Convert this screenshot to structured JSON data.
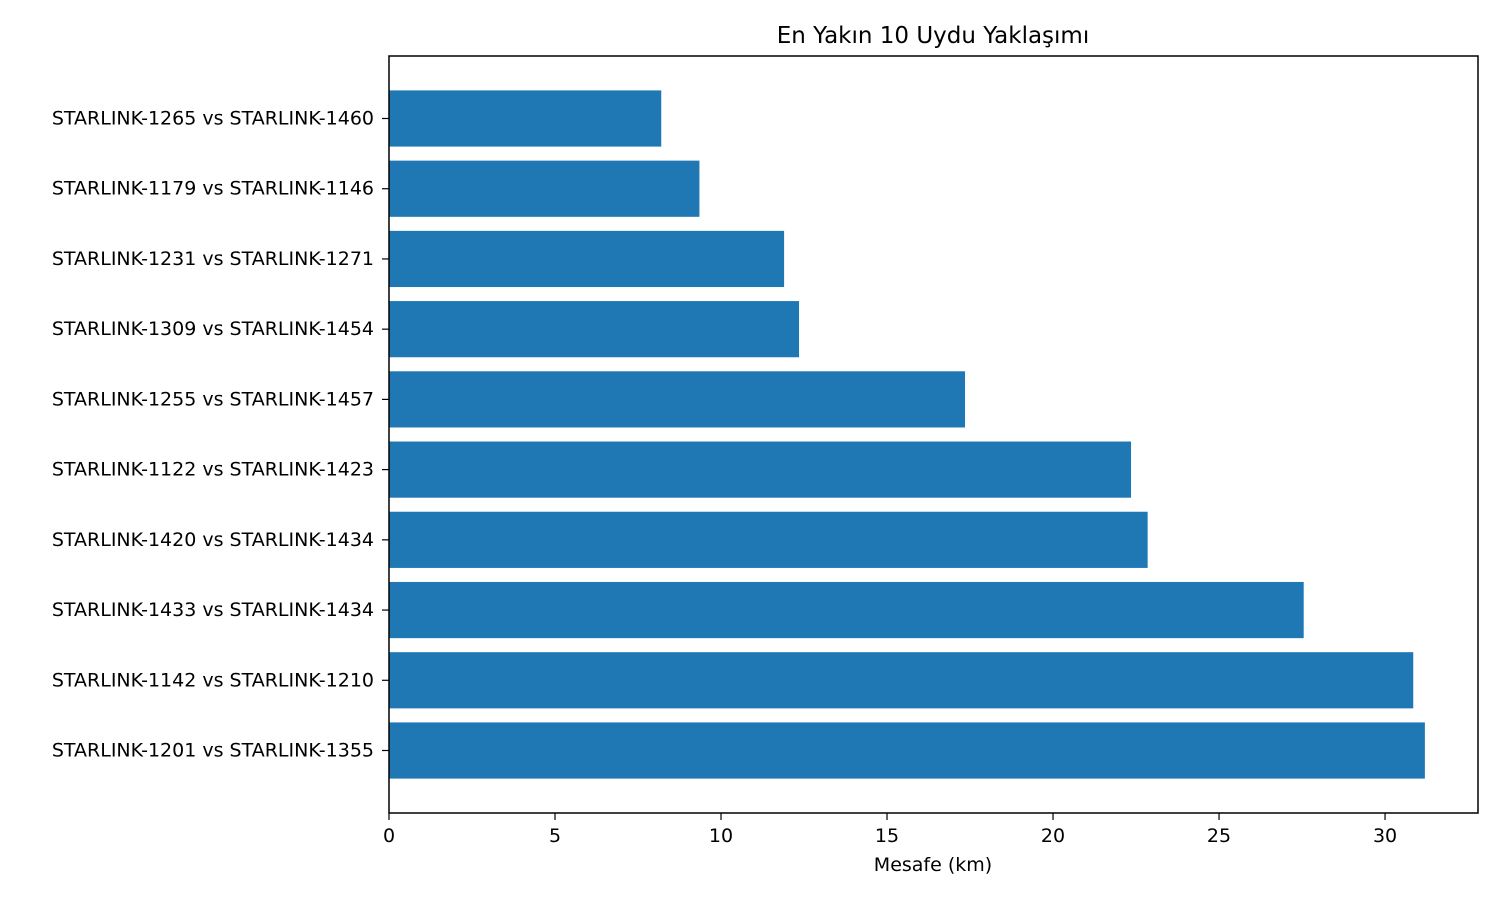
{
  "chart_data": {
    "type": "bar",
    "orientation": "horizontal",
    "title": "En Yakın 10 Uydu Yaklaşımı",
    "xlabel": "Mesafe (km)",
    "ylabel": "",
    "xlim": [
      0,
      32.8
    ],
    "xticks": [
      0,
      5,
      10,
      15,
      20,
      25,
      30
    ],
    "grid": false,
    "bar_color": "#1f77b4",
    "categories": [
      "STARLINK-1265 vs STARLINK-1460",
      "STARLINK-1179 vs STARLINK-1146",
      "STARLINK-1231 vs STARLINK-1271",
      "STARLINK-1309 vs STARLINK-1454",
      "STARLINK-1255 vs STARLINK-1457",
      "STARLINK-1122 vs STARLINK-1423",
      "STARLINK-1420 vs STARLINK-1434",
      "STARLINK-1433 vs STARLINK-1434",
      "STARLINK-1142 vs STARLINK-1210",
      "STARLINK-1201 vs STARLINK-1355"
    ],
    "values": [
      8.2,
      9.35,
      11.9,
      12.35,
      17.35,
      22.35,
      22.85,
      27.55,
      30.85,
      31.2
    ]
  }
}
